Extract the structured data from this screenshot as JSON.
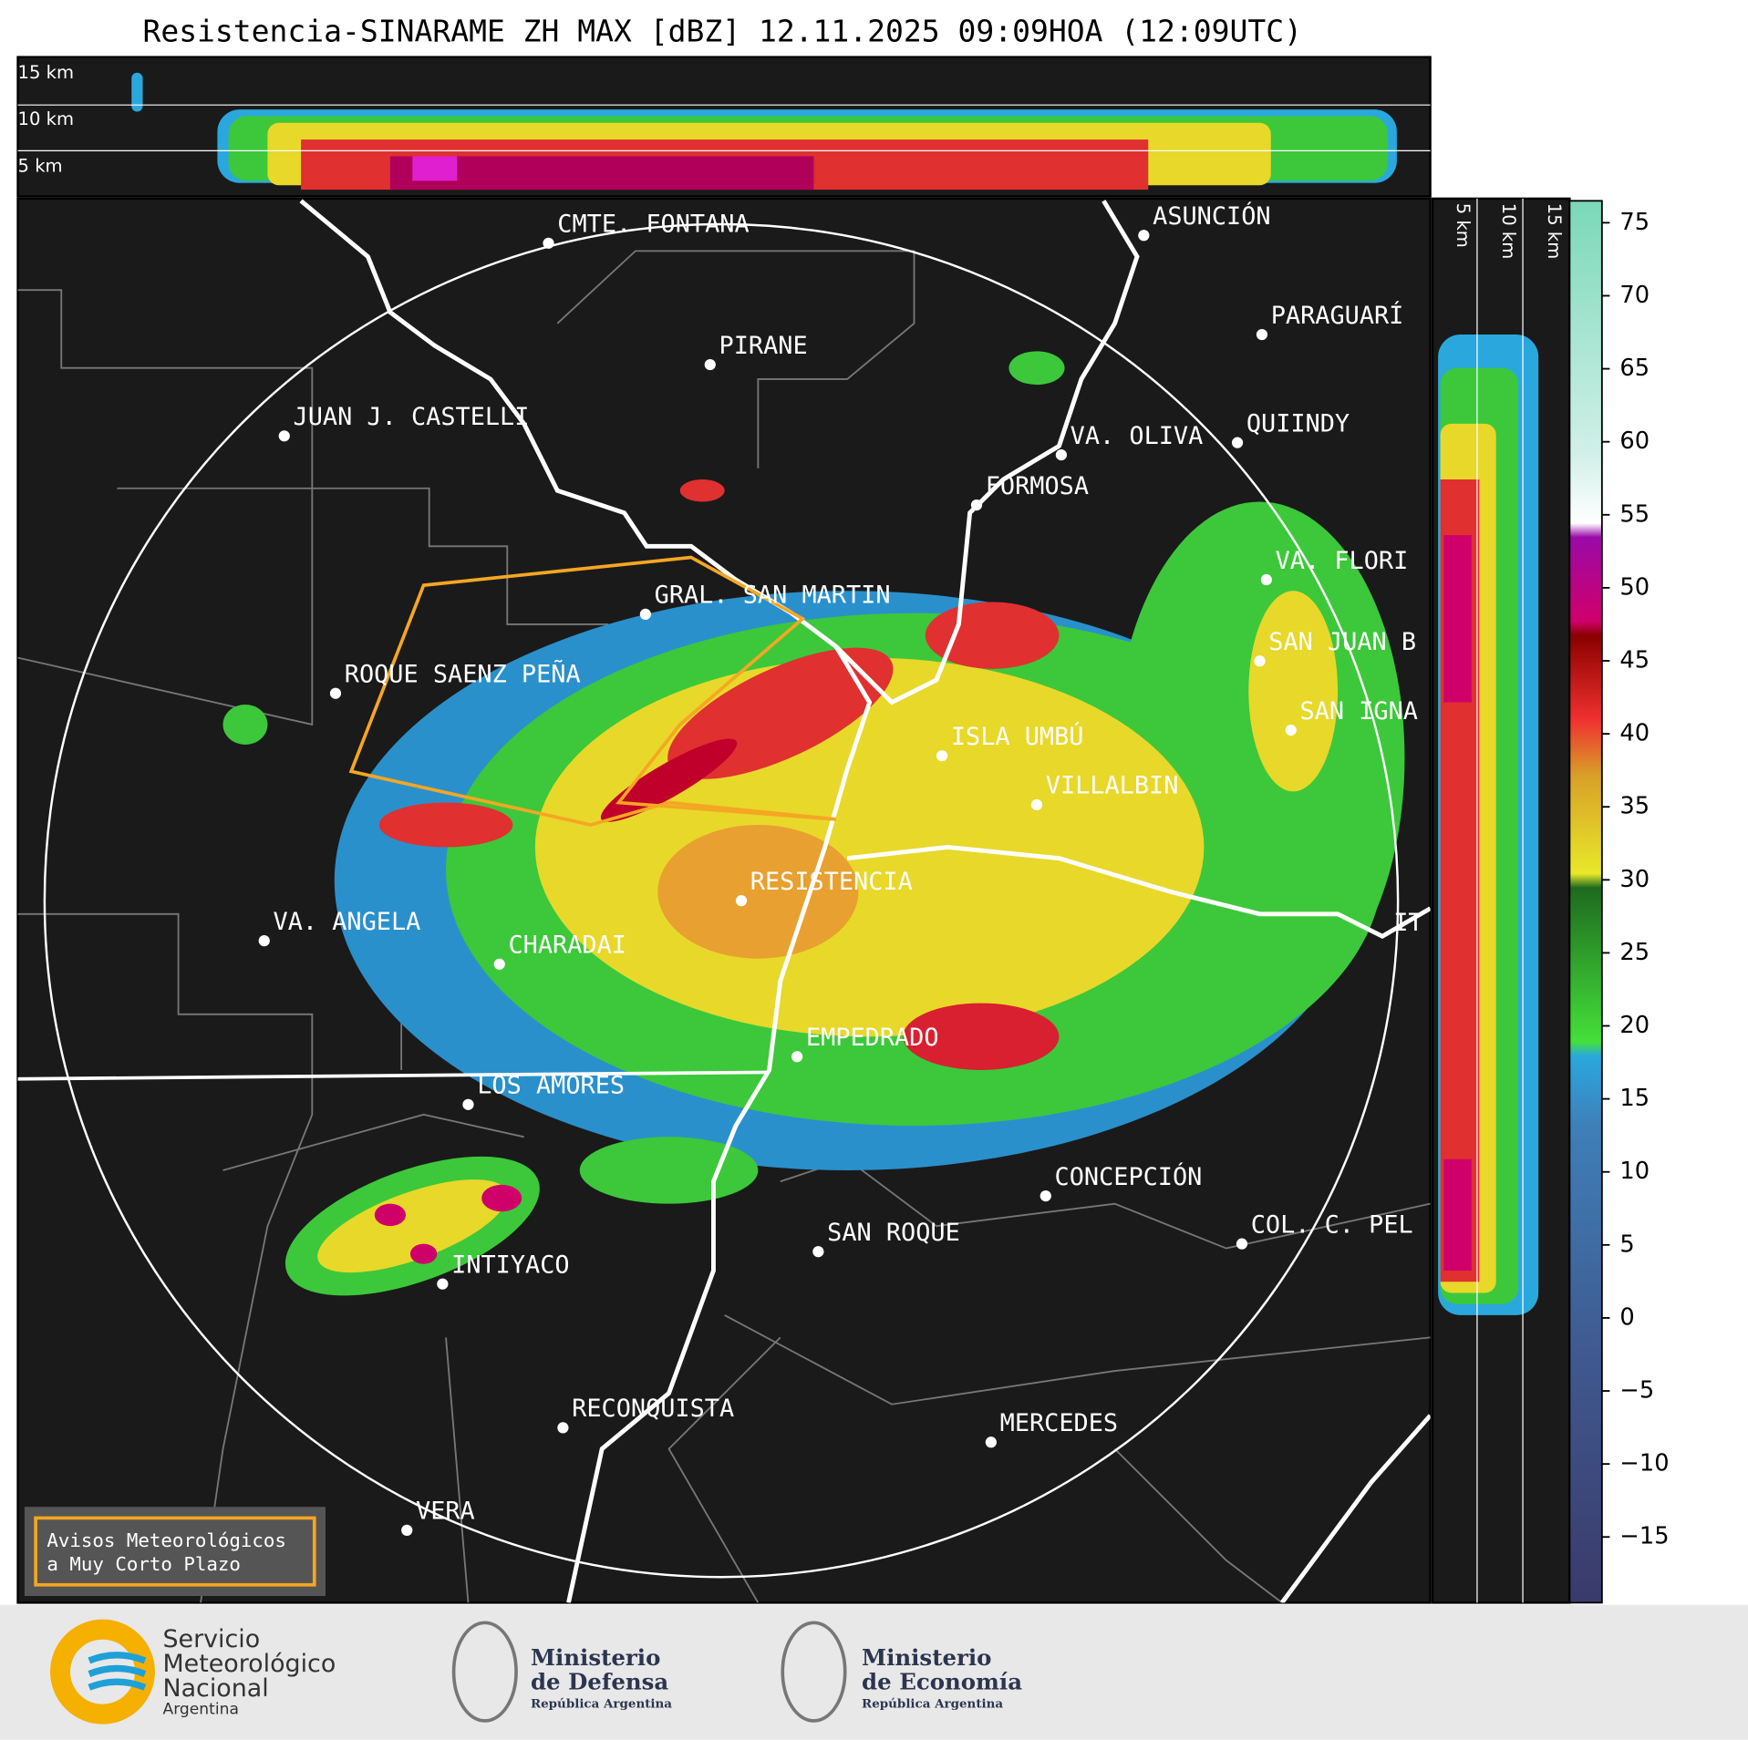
{
  "header": {
    "title": "Resistencia-SINARAME ZH MAX [dBZ] 12.11.2025 09:09HOA (12:09UTC)"
  },
  "cross_section_top": {
    "levels": [
      "15 km",
      "10 km",
      "5 km"
    ]
  },
  "cross_section_side": {
    "levels": [
      "5 km",
      "10 km",
      "15 km"
    ]
  },
  "map": {
    "places": [
      {
        "label": "CMTE. FONTANA",
        "dot": true
      },
      {
        "label": "PIRANE",
        "dot": true
      },
      {
        "label": "JUAN J. CASTELLI",
        "dot": true
      },
      {
        "label": "ASUNCIÓN",
        "dot": true
      },
      {
        "label": "PARAGUARÍ",
        "dot": true
      },
      {
        "label": "VA. OLIVA",
        "dot": true
      },
      {
        "label": "QUIINDY",
        "dot": true
      },
      {
        "label": "FORMOSA",
        "dot": true
      },
      {
        "label": "VA. FLORI",
        "dot": true
      },
      {
        "label": "SAN JUAN B",
        "dot": true
      },
      {
        "label": "SAN IGNA",
        "dot": true
      },
      {
        "label": "GRAL. SAN MARTIN",
        "dot": true
      },
      {
        "label": "ROQUE SAENZ PEÑA",
        "dot": true
      },
      {
        "label": "ISLA UMBÚ",
        "dot": true
      },
      {
        "label": "VILLALBIN",
        "dot": true
      },
      {
        "label": "RESISTENCIA",
        "dot": true
      },
      {
        "label": "IT",
        "dot": false
      },
      {
        "label": "VA. ANGELA",
        "dot": true
      },
      {
        "label": "CHARADAI",
        "dot": true
      },
      {
        "label": "EMPEDRADO",
        "dot": true
      },
      {
        "label": "LOS AMORES",
        "dot": true
      },
      {
        "label": "CONCEPCIÓN",
        "dot": true
      },
      {
        "label": "COL. C. PEL",
        "dot": true
      },
      {
        "label": "SAN ROQUE",
        "dot": true
      },
      {
        "label": "INTIYACO",
        "dot": true
      },
      {
        "label": "RECONQUISTA",
        "dot": true
      },
      {
        "label": "MERCEDES",
        "dot": true
      },
      {
        "label": "VERA",
        "dot": true
      }
    ]
  },
  "colorbar": {
    "lim": [
      -19.5,
      76.5
    ],
    "ticks": [
      75,
      70,
      65,
      60,
      55,
      50,
      45,
      40,
      35,
      30,
      25,
      20,
      15,
      10,
      5,
      0,
      {
        "value": -5,
        "label": "−5"
      },
      {
        "value": -10,
        "label": "−10"
      },
      {
        "value": -15,
        "label": "−15"
      }
    ]
  },
  "notice": {
    "lines": [
      "Avisos Meteorológicos",
      "a Muy Corto Plazo"
    ]
  },
  "footer": {
    "smn": [
      "Servicio",
      "Meteorológico",
      "Nacional",
      "Argentina"
    ],
    "defensa": [
      "Ministerio",
      "de Defensa",
      "República Argentina"
    ],
    "economia": [
      "Ministerio",
      "de Economía",
      "República Argentina"
    ]
  }
}
